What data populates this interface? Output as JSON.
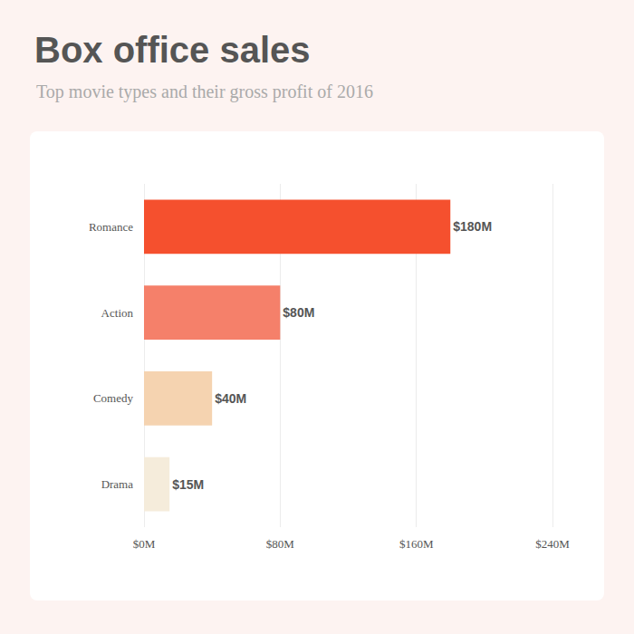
{
  "chart_data": {
    "type": "bar",
    "title": "Box office sales",
    "subtitle": "Top movie types and their gross profit of 2016",
    "orientation": "horizontal",
    "categories": [
      "Romance",
      "Action",
      "Comedy",
      "Drama"
    ],
    "values": [
      180,
      80,
      40,
      15
    ],
    "value_labels": [
      "$180M",
      "$80M",
      "$40M",
      "$15M"
    ],
    "colors": [
      "#f5502e",
      "#f5806a",
      "#f5d3b0",
      "#f5ecdb"
    ],
    "xlim": [
      0,
      240
    ],
    "xticks": [
      {
        "value": 0,
        "label": "$0M"
      },
      {
        "value": 80,
        "label": "$80M"
      },
      {
        "value": 160,
        "label": "$160M"
      },
      {
        "value": 240,
        "label": "$240M"
      }
    ],
    "grid": true,
    "data_labels": true
  }
}
